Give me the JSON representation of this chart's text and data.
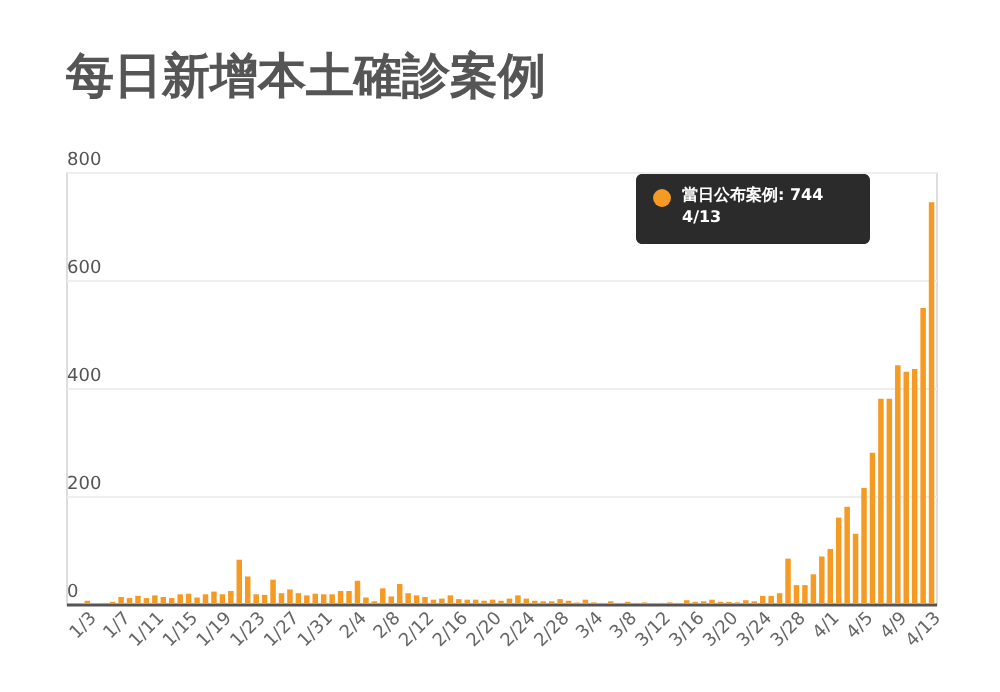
{
  "chart_data": {
    "type": "bar",
    "title": "每日新增本土確診案例",
    "categories": [
      null,
      null,
      "1/3",
      null,
      null,
      null,
      "1/7",
      null,
      null,
      null,
      "1/11",
      null,
      null,
      null,
      "1/15",
      null,
      null,
      null,
      "1/19",
      null,
      null,
      null,
      "1/23",
      null,
      null,
      null,
      "1/27",
      null,
      null,
      null,
      "1/31",
      null,
      null,
      null,
      "2/4",
      null,
      null,
      null,
      "2/8",
      null,
      null,
      null,
      "2/12",
      null,
      null,
      null,
      "2/16",
      null,
      null,
      null,
      "2/20",
      null,
      null,
      null,
      "2/24",
      null,
      null,
      null,
      "2/28",
      null,
      null,
      null,
      "3/4",
      null,
      null,
      null,
      "3/8",
      null,
      null,
      null,
      "3/12",
      null,
      null,
      null,
      "3/16",
      null,
      null,
      null,
      "3/20",
      null,
      null,
      null,
      "3/24",
      null,
      null,
      null,
      "3/28",
      null,
      null,
      null,
      "4/1",
      null,
      null,
      null,
      "4/5",
      null,
      null,
      null,
      "4/9",
      null,
      null,
      null,
      "4/13"
    ],
    "series": [
      {
        "color": "#f59a23",
        "values": [
          0,
          0,
          6,
          0,
          2,
          4,
          13,
          11,
          15,
          11,
          16,
          13,
          11,
          18,
          19,
          12,
          18,
          23,
          18,
          24,
          82,
          51,
          18,
          17,
          45,
          20,
          27,
          20,
          16,
          19,
          18,
          18,
          24,
          24,
          43,
          12,
          5,
          29,
          14,
          37,
          20,
          16,
          13,
          8,
          10,
          16,
          9,
          8,
          8,
          6,
          8,
          6,
          10,
          16,
          10,
          6,
          5,
          5,
          9,
          6,
          3,
          8,
          3,
          2,
          5,
          2,
          4,
          2,
          3,
          null,
          2,
          3,
          2,
          7,
          4,
          5,
          8,
          4,
          4,
          3,
          7,
          5,
          15,
          15,
          20,
          84,
          35,
          35,
          55,
          88,
          102,
          160,
          180,
          130,
          215,
          280,
          380,
          380,
          442,
          430,
          435,
          548,
          744
        ]
      }
    ],
    "ylim": [
      0,
      800
    ],
    "yticks": [
      0,
      200,
      400,
      600,
      800
    ],
    "grid": "y",
    "annotations": [
      "當日公布案例: 744\n4/13"
    ]
  }
}
